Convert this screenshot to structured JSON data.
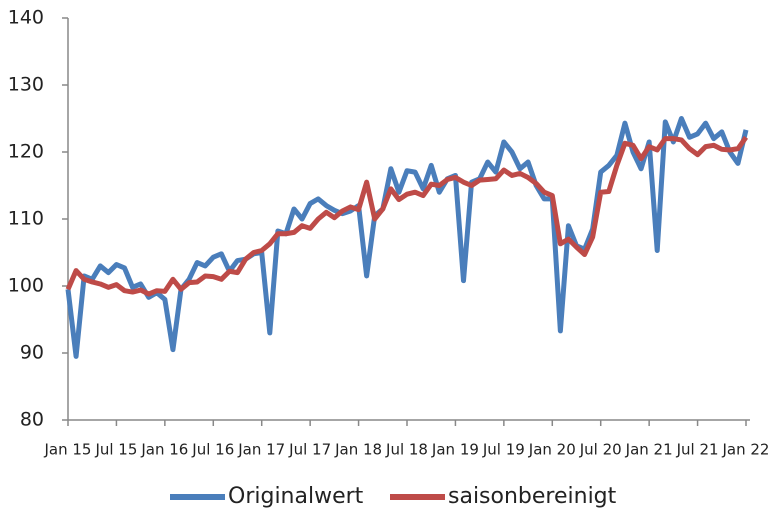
{
  "chart_data": {
    "type": "line",
    "categories": [
      "Jan 15",
      null,
      null,
      null,
      null,
      null,
      "Jul 15",
      null,
      null,
      null,
      null,
      null,
      "Jan 16",
      null,
      null,
      null,
      null,
      null,
      "Jul 16",
      null,
      null,
      null,
      null,
      null,
      "Jan 17",
      null,
      null,
      null,
      null,
      null,
      "Jul 17",
      null,
      null,
      null,
      null,
      null,
      "Jan 18",
      null,
      null,
      null,
      null,
      null,
      "Jul 18",
      null,
      null,
      null,
      null,
      null,
      "Jan 19",
      null,
      null,
      null,
      null,
      null,
      "Jul 19",
      null,
      null,
      null,
      null,
      null,
      "Jan 20",
      null,
      null,
      null,
      null,
      null,
      "Jul 20",
      null,
      null,
      null,
      null,
      null,
      "Jan 21",
      null,
      null,
      null,
      null,
      null,
      "Jul 21",
      null,
      null,
      null,
      null,
      null,
      "Jan 22"
    ],
    "series": [
      {
        "name": "Originalwert",
        "color": "#4a7ebb",
        "values": [
          99.5,
          89.5,
          101.5,
          101,
          103,
          102,
          103.2,
          102.7,
          99.8,
          100.3,
          98.3,
          99.0,
          98.0,
          90.5,
          99.5,
          101,
          103.5,
          103,
          104.3,
          104.8,
          102.2,
          103.8,
          104,
          104.8,
          105,
          93,
          108.2,
          107.8,
          111.5,
          110,
          112.3,
          113,
          112,
          111.3,
          110.8,
          111.2,
          112,
          101.5,
          110.5,
          111.5,
          117.5,
          114,
          117.2,
          117,
          114.5,
          118,
          114,
          116,
          116.5,
          100.8,
          115.5,
          116,
          118.5,
          117,
          121.5,
          120,
          117.5,
          118.5,
          115,
          113,
          113,
          93.3,
          109,
          106,
          105.5,
          108.5,
          117,
          118,
          119.5,
          124.3,
          120,
          117.5,
          121.5,
          105.3,
          124.5,
          121.5,
          125,
          122.2,
          122.7,
          124.3,
          122,
          123,
          120,
          118.3,
          123.3
        ]
      },
      {
        "name": "saisonbereinigt",
        "color": "#be4b48",
        "values": [
          99.5,
          102.3,
          101,
          100.6,
          100.3,
          99.8,
          100.2,
          99.3,
          99.1,
          99.4,
          98.8,
          99.3,
          99.2,
          101,
          99.5,
          100.5,
          100.6,
          101.5,
          101.4,
          101,
          102.2,
          102,
          104,
          105,
          105.3,
          106.3,
          107.8,
          107.8,
          108,
          109,
          108.6,
          110,
          111,
          110.2,
          111.2,
          111.8,
          111.4,
          115.5,
          110,
          111.5,
          114.5,
          112.9,
          113.7,
          114,
          113.5,
          115.2,
          115,
          115.9,
          116.2,
          115.5,
          115,
          115.8,
          115.9,
          116,
          117.3,
          116.5,
          116.8,
          116.2,
          115.3,
          114,
          113.5,
          106.3,
          107,
          105.8,
          104.7,
          107.3,
          114,
          114.1,
          118,
          121.3,
          121,
          119,
          120.8,
          120.3,
          122,
          122,
          121.8,
          120.5,
          119.6,
          120.8,
          121,
          120.4,
          120.3,
          120.5,
          122.2
        ]
      }
    ],
    "ylim": [
      80,
      140
    ],
    "yticks": [
      80,
      90,
      100,
      110,
      120,
      130,
      140
    ],
    "grid": false,
    "legend": "bottom"
  }
}
